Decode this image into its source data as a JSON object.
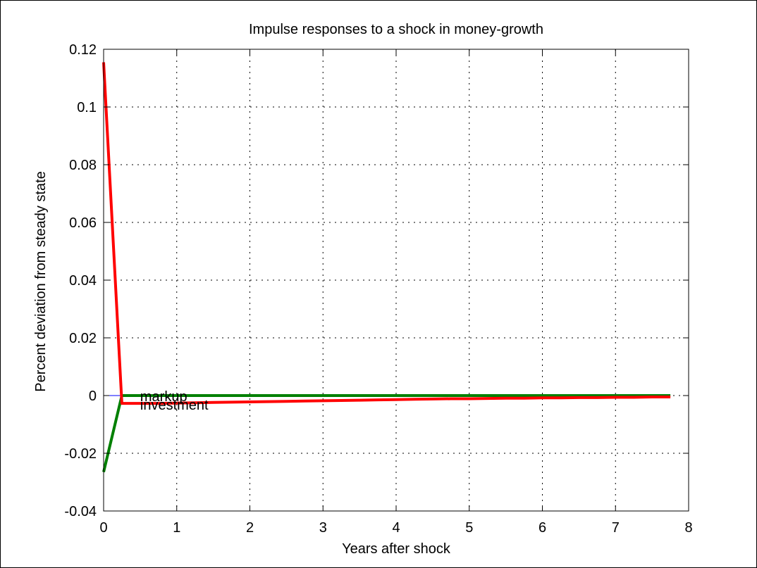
{
  "chart_data": {
    "type": "line",
    "title": "Impulse responses to a shock in money-growth",
    "xlabel": "Years after shock",
    "ylabel": "Percent deviation from steady state",
    "xlim": [
      0,
      8
    ],
    "ylim": [
      -0.04,
      0.12
    ],
    "xticks": [
      0,
      1,
      2,
      3,
      4,
      5,
      6,
      7,
      8
    ],
    "yticks": [
      -0.04,
      -0.02,
      0,
      0.02,
      0.04,
      0.06,
      0.08,
      0.1,
      0.12
    ],
    "xtick_labels": [
      "0",
      "1",
      "2",
      "3",
      "4",
      "5",
      "6",
      "7",
      "8"
    ],
    "ytick_labels": [
      "-0.04",
      "-0.02",
      "0",
      "0.02",
      "0.04",
      "0.06",
      "0.08",
      "0.1",
      "0.12"
    ],
    "grid": true,
    "series": [
      {
        "name": "",
        "color": "#0000ff",
        "x": [
          0,
          0.25
        ],
        "y": [
          0,
          0
        ]
      },
      {
        "name": "",
        "color": "#008000",
        "x": [
          0,
          0.25,
          0.5,
          1,
          2,
          3,
          4,
          5,
          6,
          7,
          7.75
        ],
        "y": [
          -0.0265,
          0,
          0,
          0,
          0,
          0,
          0,
          0,
          0,
          0,
          0
        ]
      },
      {
        "name": "",
        "color": "#ff0000",
        "x": [
          0,
          0.25,
          0.5,
          0.75,
          1,
          1.25,
          1.5,
          1.75,
          2,
          2.25,
          2.5,
          2.75,
          3,
          3.25,
          3.5,
          3.75,
          4,
          4.25,
          4.5,
          4.75,
          5,
          5.25,
          5.5,
          5.75,
          6,
          6.25,
          6.5,
          6.75,
          7,
          7.25,
          7.5,
          7.75
        ],
        "y": [
          0.1155,
          -0.0027,
          -0.0027,
          -0.0027,
          -0.0026,
          -0.0025,
          -0.0024,
          -0.0023,
          -0.0022,
          -0.0021,
          -0.002,
          -0.0019,
          -0.0018,
          -0.0017,
          -0.0016,
          -0.0015,
          -0.0014,
          -0.0013,
          -0.0012,
          -0.0011,
          -0.0011,
          -0.001,
          -0.0009,
          -0.0009,
          -0.0008,
          -0.0008,
          -0.0007,
          -0.0007,
          -0.0006,
          -0.0006,
          -0.0005,
          -0.0005
        ]
      }
    ],
    "annotations": [
      {
        "text": "markup",
        "x": 0.5,
        "y": -0.0003
      },
      {
        "text": "investment",
        "x": 0.5,
        "y": -0.0032
      }
    ]
  }
}
